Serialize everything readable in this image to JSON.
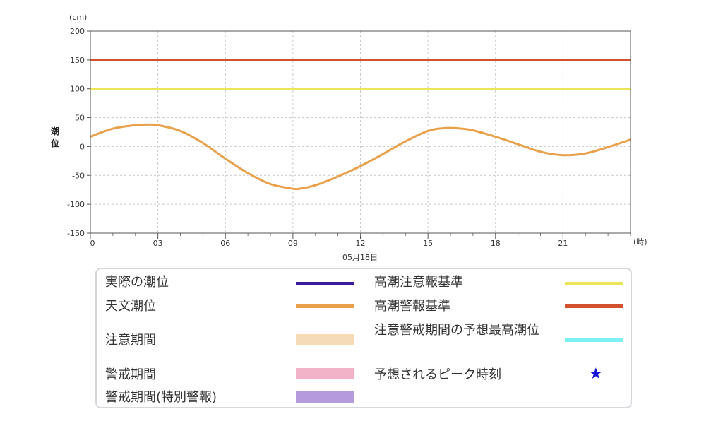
{
  "chart_data": {
    "type": "line",
    "y_unit": "(cm)",
    "x_unit": "(時)",
    "ylabel": "潮位",
    "date_label": "05月18日",
    "ylim": [
      -150,
      200
    ],
    "xlim": [
      0,
      24
    ],
    "yticks": [
      200,
      150,
      100,
      50,
      0,
      -50,
      -100,
      -150
    ],
    "xticks": [
      {
        "value": 0,
        "label": "0"
      },
      {
        "value": 3,
        "label": "03"
      },
      {
        "value": 6,
        "label": "06"
      },
      {
        "value": 9,
        "label": "09"
      },
      {
        "value": 12,
        "label": "12"
      },
      {
        "value": 15,
        "label": "15"
      },
      {
        "value": 18,
        "label": "18"
      },
      {
        "value": 21,
        "label": "21"
      }
    ],
    "grid": true,
    "series": [
      {
        "name": "天文潮位",
        "color": "#e9a04a",
        "x": [
          0,
          1,
          2,
          2.5,
          3,
          4,
          5,
          6,
          7,
          8,
          9,
          9.3,
          10,
          11,
          12,
          13,
          14,
          15,
          15.8,
          16.5,
          17,
          18,
          19,
          20,
          21,
          22,
          23,
          24
        ],
        "y": [
          17,
          31,
          37,
          38,
          37,
          27,
          6,
          -21,
          -46,
          -65,
          -73,
          -73,
          -67,
          -52,
          -34,
          -13,
          9,
          27,
          32,
          31,
          28,
          17,
          4,
          -9,
          -15,
          -12,
          -1,
          12
        ]
      }
    ],
    "hlines": [
      {
        "name": "高潮警報基準",
        "value": 150,
        "color": "#d4512f"
      },
      {
        "name": "高潮注意報基準",
        "value": 100,
        "color": "#ece55a"
      }
    ]
  },
  "legend": {
    "items": [
      {
        "label": "実際の潮位",
        "color": "#3a1ba0",
        "kind": "line"
      },
      {
        "label": "天文潮位",
        "color": "#e9a04a",
        "kind": "line"
      },
      {
        "label": "注意期間",
        "color": "#f6dcb6",
        "kind": "block"
      },
      {
        "label": "警戒期間",
        "color": "#f2b2c8",
        "kind": "block"
      },
      {
        "label": "警戒期間(特別警報)",
        "color": "#b59add",
        "kind": "block"
      },
      {
        "label": "高潮注意報基準",
        "color": "#ece55a",
        "kind": "line"
      },
      {
        "label": "高潮警報基準",
        "color": "#d4512f",
        "kind": "line"
      },
      {
        "label": "注意警戒期間の予想最高潮位",
        "color": "#7ff0f2",
        "kind": "line"
      },
      {
        "label": "予想されるピーク時刻",
        "color": "#1515d8",
        "kind": "star",
        "symbol": "★"
      }
    ]
  }
}
